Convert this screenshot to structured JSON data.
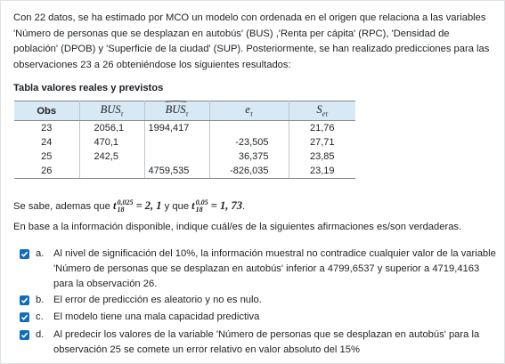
{
  "intro": "Con 22 datos, se ha estimado por MCO un modelo con ordenada en el origen que relaciona a las variables 'Número de personas que se desplazan en autobús' (BUS) ,'Renta per cápita' (RPC), 'Densidad de población' (DPOB) y 'Superficie de la ciudad' (SUP). Posteriormente, se han realizado predicciones para las observaciones 23 a 26 obteniéndose los siguientes resultados:",
  "table": {
    "title": "Tabla valores reales y previstos",
    "headers": {
      "obs": "Obs",
      "bus": "BUS",
      "bus_sub": "τ",
      "bushat": "BUS",
      "bushat_sub": "τ",
      "e": "e",
      "e_sub": "τ",
      "s": "S",
      "s_sub": "eτ"
    },
    "rows": [
      {
        "obs": "23",
        "bus": "2056,1",
        "bushat": "1994,417",
        "e": "",
        "s": "21,76"
      },
      {
        "obs": "24",
        "bus": "470,1",
        "bushat": "",
        "e": "-23,505",
        "s": "27,71"
      },
      {
        "obs": "25",
        "bus": "242,5",
        "bushat": "",
        "e": "36,375",
        "s": "23,85"
      },
      {
        "obs": "26",
        "bus": "",
        "bushat": "4759,535",
        "e": "-826,035",
        "s": "23,19"
      }
    ]
  },
  "sabe": {
    "prefix": "Se sabe, ademas que",
    "t1": "t",
    "t1_sup": "0,025",
    "t1_sub": "18",
    "t1_value": "= 2, 1",
    "middle": "y que",
    "t2": "t",
    "t2_sup": "0,05",
    "t2_sub": "18",
    "t2_value": "= 1, 73",
    "end": "."
  },
  "base_text": "En base a la información disponible, indique cuál/es de la siguientes afirmaciones es/son verdaderas.",
  "options": [
    {
      "letter": "a.",
      "checked": true,
      "text": "Al nivel de significación del 10%, la información muestral no contradice cualquier valor de la variable 'Número de personas que se desplazan en autobús' inferior a 4799,6537 y superior a 4719,4163 para la observación 26."
    },
    {
      "letter": "b.",
      "checked": true,
      "text": "El error de predicción es aleatorio y no es nulo."
    },
    {
      "letter": "c.",
      "checked": true,
      "text": "El modelo tiene una mala capacidad predictiva"
    },
    {
      "letter": "d.",
      "checked": true,
      "text": "Al predecir los valores de la variable 'Número de personas que se desplazan en autobús' para la observación 25 se comete un error relativo en valor absoluto del 15%"
    }
  ],
  "colors": {
    "checkbox": "#0f6cbf",
    "table_header": "#d7e9f5"
  }
}
